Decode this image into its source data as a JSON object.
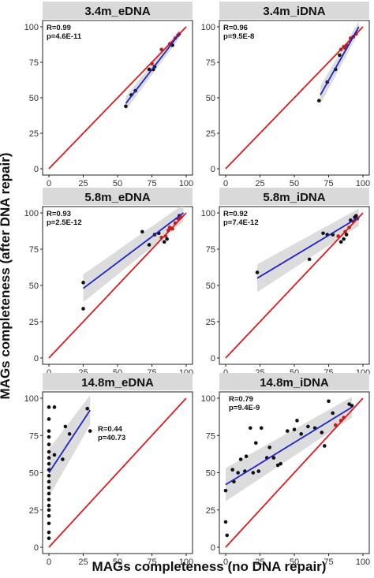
{
  "figure": {
    "ylabel": "MAGs completeness (after DNA repair)",
    "xlabel": "MAGs completeness (no DNA repair)"
  },
  "colors": {
    "identity_line": "#e0191c",
    "fit_line": "#1f24c4",
    "confidence_band": "#d6d6d6",
    "strip_bg": "#d9d9d9",
    "points": "#111111",
    "points_on_line": "#c31d1d"
  },
  "chart_data": [
    {
      "type": "scatter",
      "title": "3.4m_eDNA",
      "stats": [
        "R=0.99",
        "p=4.6E-11"
      ],
      "xlim": [
        0,
        100
      ],
      "ylim": [
        0,
        100
      ],
      "xticks": [
        0,
        25,
        50,
        75,
        100
      ],
      "yticks": [
        0,
        25,
        50,
        75,
        100
      ],
      "show_xticks": true,
      "points": [
        [
          56,
          44
        ],
        [
          60,
          52
        ],
        [
          63,
          55
        ],
        [
          73,
          70
        ],
        [
          75,
          74
        ],
        [
          76,
          70
        ],
        [
          77,
          72
        ],
        [
          82,
          84
        ],
        [
          88,
          88
        ],
        [
          90,
          87
        ],
        [
          92,
          92
        ],
        [
          94,
          94
        ],
        [
          95,
          95
        ]
      ],
      "fit": [
        [
          56,
          46
        ],
        [
          95,
          95
        ]
      ],
      "band": 3
    },
    {
      "type": "scatter",
      "title": "3.4m_iDNA",
      "stats": [
        "R=0.96",
        "p=9.5E-8"
      ],
      "xlim": [
        0,
        100
      ],
      "ylim": [
        0,
        100
      ],
      "xticks": [
        0,
        25,
        50,
        75,
        100
      ],
      "yticks": [
        0,
        25,
        50,
        75,
        100
      ],
      "show_xticks": true,
      "points": [
        [
          68,
          48
        ],
        [
          74,
          61
        ],
        [
          80,
          70
        ],
        [
          83,
          80
        ],
        [
          84,
          84
        ],
        [
          86,
          86
        ],
        [
          87,
          85
        ],
        [
          88,
          87
        ],
        [
          91,
          92
        ],
        [
          93,
          93
        ],
        [
          95,
          95
        ]
      ],
      "fit": [
        [
          69,
          52
        ],
        [
          97,
          100
        ]
      ],
      "band": 4
    },
    {
      "type": "scatter",
      "title": "5.8m_eDNA",
      "stats": [
        "R=0.93",
        "p=2.5E-12"
      ],
      "xlim": [
        0,
        100
      ],
      "ylim": [
        0,
        100
      ],
      "xticks": [
        0,
        25,
        50,
        75,
        100
      ],
      "yticks": [
        0,
        25,
        50,
        75,
        100
      ],
      "show_xticks": true,
      "points": [
        [
          25,
          52
        ],
        [
          25,
          34
        ],
        [
          68,
          87
        ],
        [
          73,
          78
        ],
        [
          77,
          85
        ],
        [
          80,
          86
        ],
        [
          82,
          83
        ],
        [
          84,
          80
        ],
        [
          85,
          84
        ],
        [
          86,
          82
        ],
        [
          87,
          88
        ],
        [
          88,
          90
        ],
        [
          90,
          89
        ],
        [
          92,
          93
        ],
        [
          94,
          96
        ],
        [
          95,
          98
        ],
        [
          96,
          97
        ]
      ],
      "fit": [
        [
          25,
          48
        ],
        [
          98,
          100
        ]
      ],
      "band": 6
    },
    {
      "type": "scatter",
      "title": "5.8m_iDNA",
      "stats": [
        "R=0.92",
        "p=7.4E-12"
      ],
      "xlim": [
        0,
        100
      ],
      "ylim": [
        0,
        100
      ],
      "xticks": [
        0,
        25,
        50,
        75,
        100
      ],
      "yticks": [
        0,
        25,
        50,
        75,
        100
      ],
      "show_xticks": true,
      "points": [
        [
          23,
          59
        ],
        [
          61,
          68
        ],
        [
          71,
          86
        ],
        [
          74,
          85
        ],
        [
          78,
          85
        ],
        [
          82,
          84
        ],
        [
          84,
          80
        ],
        [
          86,
          82
        ],
        [
          87,
          87
        ],
        [
          88,
          85
        ],
        [
          90,
          90
        ],
        [
          91,
          95
        ],
        [
          93,
          94
        ],
        [
          94,
          97
        ],
        [
          95,
          98
        ],
        [
          96,
          96
        ]
      ],
      "fit": [
        [
          23,
          55
        ],
        [
          97,
          97
        ]
      ],
      "band": 6
    },
    {
      "type": "scatter",
      "title": "14.8m_eDNA",
      "stats": [
        "R=0.44",
        "p=40.73"
      ],
      "xlim": [
        0,
        100
      ],
      "ylim": [
        0,
        100
      ],
      "xticks": [
        0,
        25,
        50,
        75,
        100
      ],
      "yticks": [
        0,
        25,
        50,
        75,
        100
      ],
      "show_xticks": true,
      "points": [
        [
          0,
          94
        ],
        [
          0,
          86
        ],
        [
          0,
          78
        ],
        [
          0,
          74
        ],
        [
          0,
          69
        ],
        [
          0,
          64
        ],
        [
          0,
          60
        ],
        [
          0,
          56
        ],
        [
          0,
          52
        ],
        [
          0,
          48
        ],
        [
          0,
          44
        ],
        [
          0,
          40
        ],
        [
          0,
          36
        ],
        [
          0,
          32
        ],
        [
          0,
          28
        ],
        [
          0,
          25
        ],
        [
          0,
          21
        ],
        [
          0,
          16
        ],
        [
          0,
          10
        ],
        [
          0,
          6
        ],
        [
          4,
          94
        ],
        [
          4,
          62
        ],
        [
          10,
          59
        ],
        [
          12,
          81
        ],
        [
          15,
          76
        ],
        [
          28,
          93
        ],
        [
          30,
          78
        ]
      ],
      "fit": [
        [
          0,
          50
        ],
        [
          30,
          92
        ]
      ],
      "band": 10
    },
    {
      "type": "scatter",
      "title": "14.8m_iDNA",
      "stats": [
        "R=0.79",
        "p=9.4E-9"
      ],
      "xlim": [
        0,
        100
      ],
      "ylim": [
        0,
        100
      ],
      "xticks": [
        0,
        25,
        50,
        75,
        100
      ],
      "yticks": [
        0,
        25,
        50,
        75,
        100
      ],
      "show_xticks": true,
      "points": [
        [
          0,
          17
        ],
        [
          0,
          38
        ],
        [
          1,
          8
        ],
        [
          5,
          52
        ],
        [
          6,
          44
        ],
        [
          9,
          50
        ],
        [
          11,
          59
        ],
        [
          14,
          51
        ],
        [
          15,
          61
        ],
        [
          18,
          80
        ],
        [
          20,
          50
        ],
        [
          22,
          70
        ],
        [
          24,
          51
        ],
        [
          26,
          80
        ],
        [
          30,
          60
        ],
        [
          32,
          67
        ],
        [
          35,
          60
        ],
        [
          38,
          55
        ],
        [
          40,
          56
        ],
        [
          45,
          78
        ],
        [
          50,
          79
        ],
        [
          52,
          85
        ],
        [
          55,
          76
        ],
        [
          60,
          81
        ],
        [
          65,
          80
        ],
        [
          70,
          77
        ],
        [
          72,
          68
        ],
        [
          75,
          98
        ],
        [
          78,
          90
        ],
        [
          80,
          82
        ],
        [
          84,
          85
        ],
        [
          86,
          87
        ],
        [
          90,
          96
        ],
        [
          92,
          95
        ]
      ],
      "fit": [
        [
          0,
          42
        ],
        [
          92,
          94
        ]
      ],
      "band": 7
    }
  ]
}
